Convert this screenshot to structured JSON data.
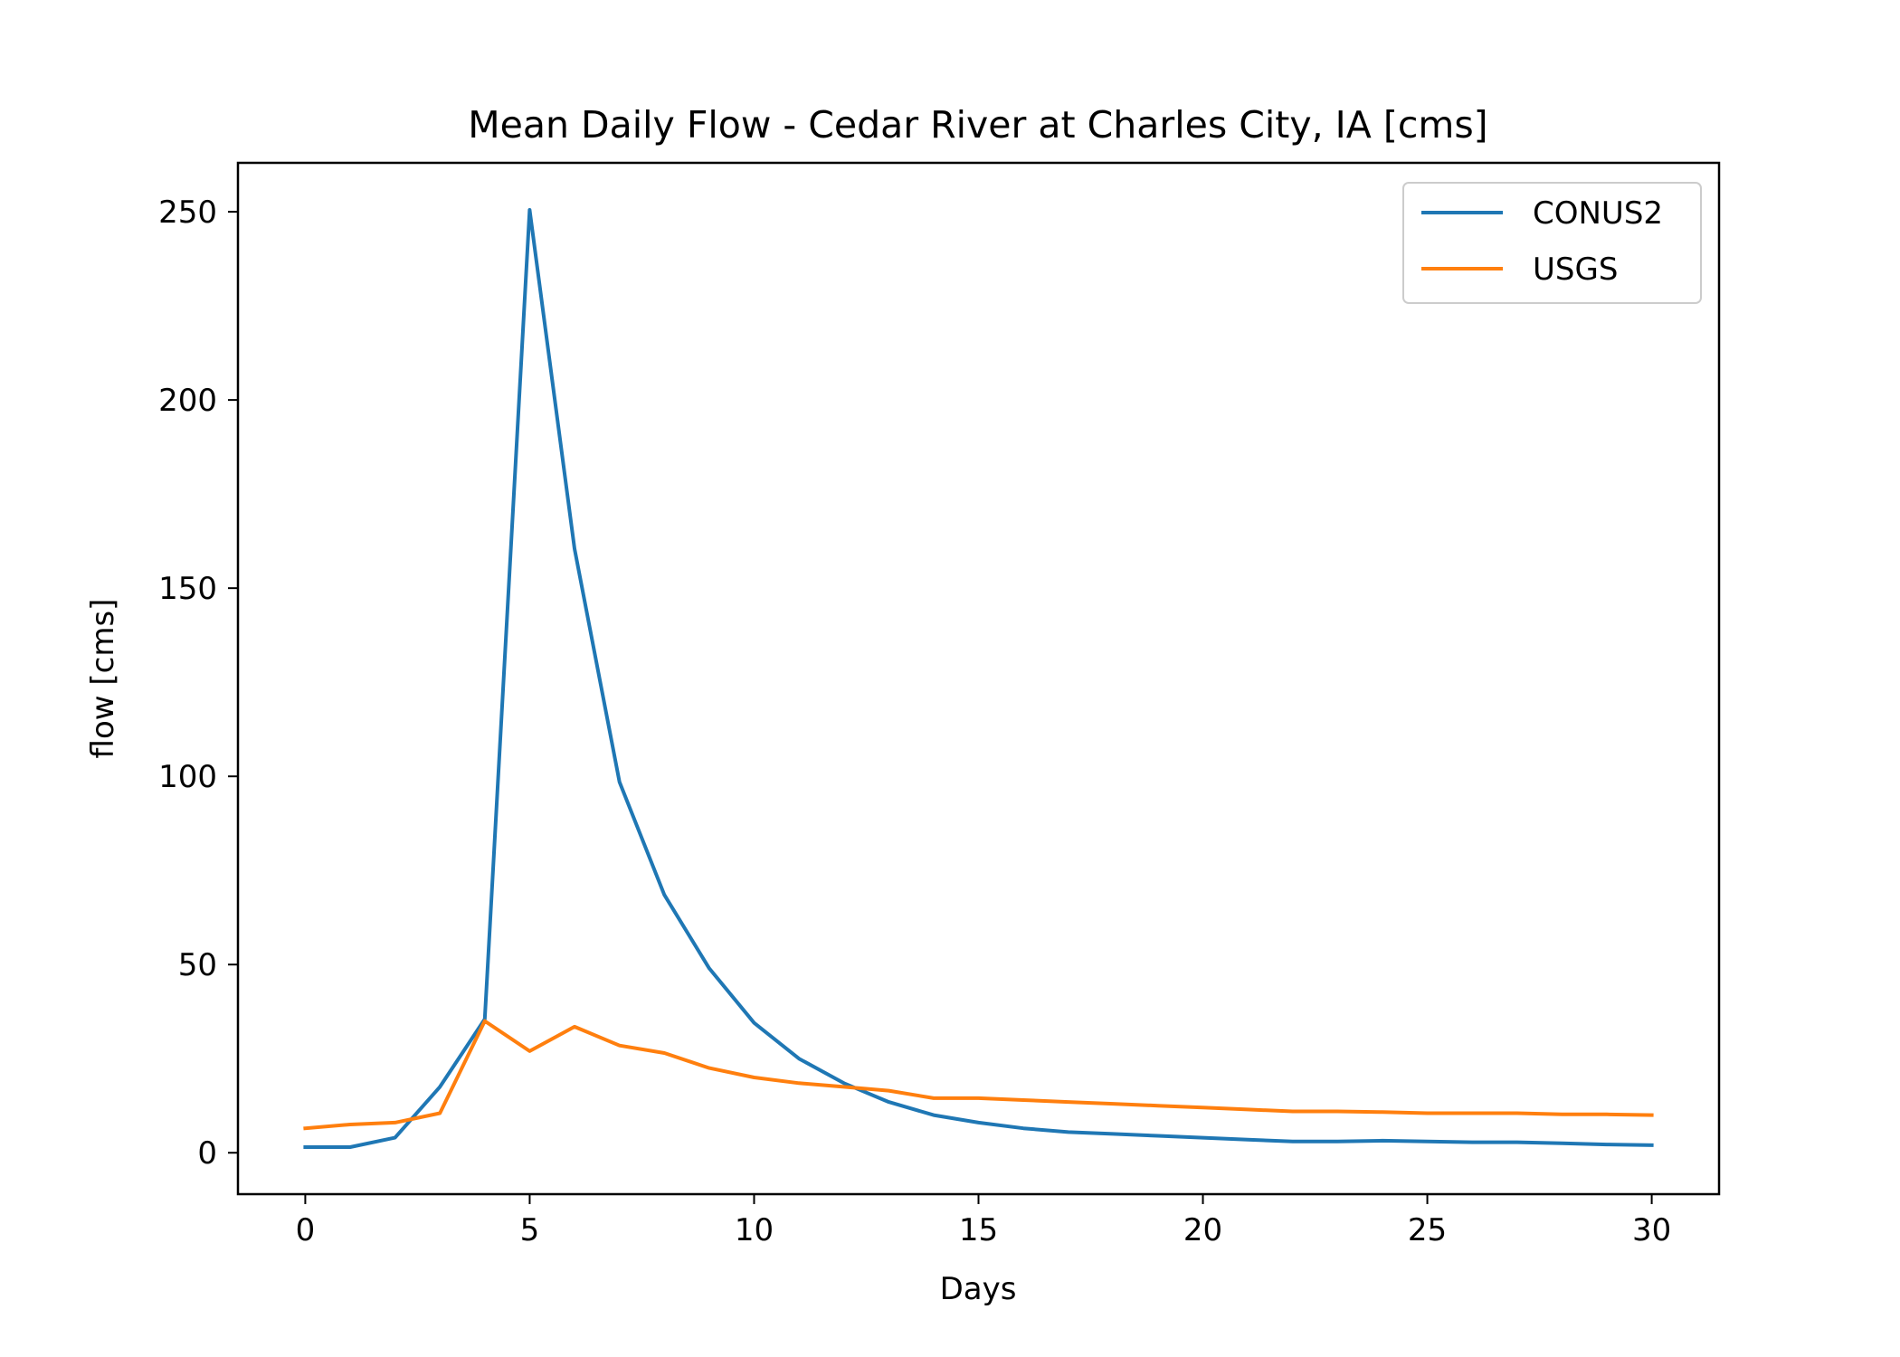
{
  "chart_data": {
    "type": "line",
    "title": "Mean Daily Flow - Cedar River at Charles City, IA [cms]",
    "xlabel": "Days",
    "ylabel": "flow [cms]",
    "xlim": [
      -1.5,
      31.5
    ],
    "ylim": [
      -11,
      263
    ],
    "x_ticks": [
      0,
      5,
      10,
      15,
      20,
      25,
      30
    ],
    "y_ticks": [
      0,
      50,
      100,
      150,
      200,
      250
    ],
    "x_tick_labels": [
      "0",
      "5",
      "10",
      "15",
      "20",
      "25",
      "30"
    ],
    "y_tick_labels": [
      "0",
      "50",
      "100",
      "150",
      "200",
      "250"
    ],
    "grid": false,
    "legend_position": "top-right",
    "x": [
      0,
      1,
      2,
      3,
      4,
      5,
      6,
      7,
      8,
      9,
      10,
      11,
      12,
      13,
      14,
      15,
      16,
      17,
      18,
      19,
      20,
      21,
      22,
      23,
      24,
      25,
      26,
      27,
      28,
      29,
      30
    ],
    "series": [
      {
        "name": "CONUS2",
        "color": "#1f77b4",
        "values": [
          1.5,
          1.5,
          4,
          17.5,
          35.5,
          250.5,
          160.5,
          98.5,
          68.5,
          49,
          34.5,
          25,
          18.5,
          13.5,
          10,
          8,
          6.5,
          5.5,
          5,
          4.5,
          4,
          3.5,
          3,
          3,
          3.2,
          3,
          2.8,
          2.8,
          2.5,
          2.2,
          2
        ]
      },
      {
        "name": "USGS",
        "color": "#ff7f0e",
        "values": [
          6.5,
          7.5,
          8,
          10.5,
          35,
          27,
          33.5,
          28.5,
          26.5,
          22.5,
          20,
          18.5,
          17.5,
          16.5,
          14.5,
          14.5,
          14,
          13.5,
          13,
          12.5,
          12,
          11.5,
          11,
          11,
          10.8,
          10.5,
          10.5,
          10.5,
          10.2,
          10.2,
          10
        ]
      }
    ]
  }
}
